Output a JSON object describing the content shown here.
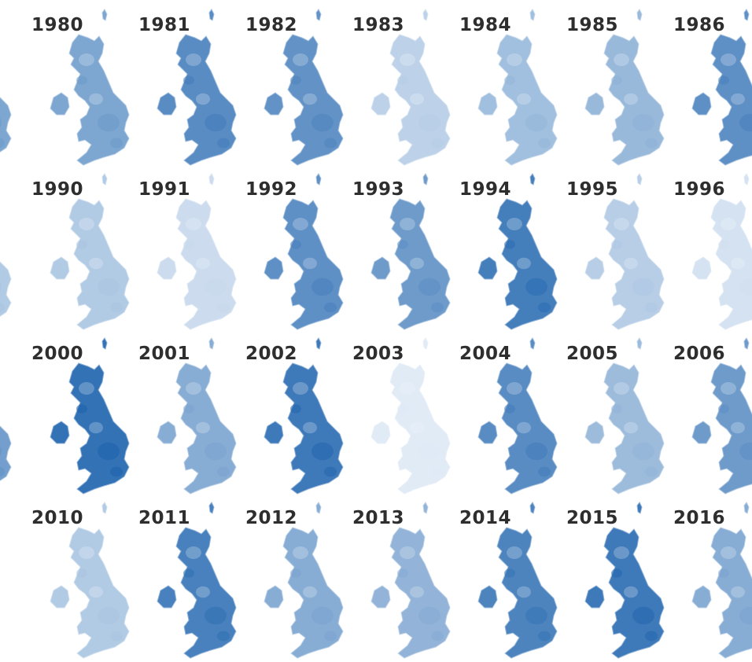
{
  "colors": {
    "low": "#f2f7fc",
    "high": "#1e63ad",
    "label": "#2e2e2e",
    "background": "#ffffff"
  },
  "rows": [
    {
      "years": [
        {
          "label": "1980",
          "level": 0.55
        },
        {
          "label": "1981",
          "level": 0.72
        },
        {
          "label": "1982",
          "level": 0.68
        },
        {
          "label": "1983",
          "level": 0.25
        },
        {
          "label": "1984",
          "level": 0.38
        },
        {
          "label": "1985",
          "level": 0.42
        },
        {
          "label": "1986",
          "level": 0.7
        }
      ]
    },
    {
      "years": [
        {
          "label": "1990",
          "level": 0.3
        },
        {
          "label": "1991",
          "level": 0.18
        },
        {
          "label": "1992",
          "level": 0.7
        },
        {
          "label": "1993",
          "level": 0.62
        },
        {
          "label": "1994",
          "level": 0.82
        },
        {
          "label": "1995",
          "level": 0.28
        },
        {
          "label": "1996",
          "level": 0.14
        }
      ]
    },
    {
      "years": [
        {
          "label": "2000",
          "level": 0.9
        },
        {
          "label": "2001",
          "level": 0.5
        },
        {
          "label": "2002",
          "level": 0.85
        },
        {
          "label": "2003",
          "level": 0.08
        },
        {
          "label": "2004",
          "level": 0.72
        },
        {
          "label": "2005",
          "level": 0.4
        },
        {
          "label": "2006",
          "level": 0.62
        }
      ]
    },
    {
      "years": [
        {
          "label": "2010",
          "level": 0.3
        },
        {
          "label": "2011",
          "level": 0.8
        },
        {
          "label": "2012",
          "level": 0.5
        },
        {
          "label": "2013",
          "level": 0.45
        },
        {
          "label": "2014",
          "level": 0.78
        },
        {
          "label": "2015",
          "level": 0.85
        },
        {
          "label": "2016",
          "level": 0.5
        }
      ]
    }
  ],
  "edge_maps": [
    {
      "level": 0.55
    },
    {
      "level": 0.3
    },
    {
      "level": 0.6
    }
  ]
}
